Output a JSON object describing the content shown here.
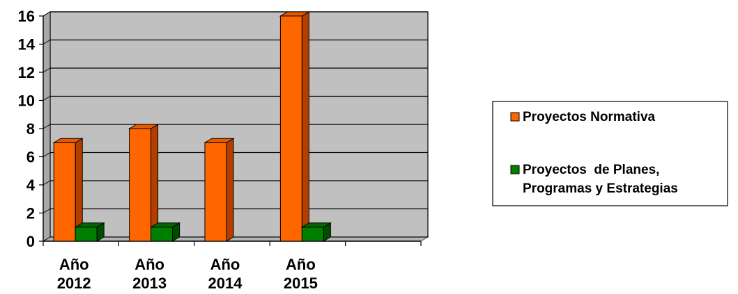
{
  "chart_data": {
    "type": "bar",
    "three_d": true,
    "categories": [
      [
        "Año",
        "2012"
      ],
      [
        "Año",
        "2013"
      ],
      [
        "Año",
        "2014"
      ],
      [
        "Año",
        "2015"
      ],
      [
        "",
        ""
      ]
    ],
    "series": [
      {
        "name": [
          "Proyectos Normativa"
        ],
        "values": [
          7,
          8,
          7,
          16,
          null
        ],
        "color": "#ff6600",
        "side_color": "#b33e00",
        "top_color": "#e85a00"
      },
      {
        "name": [
          "Proyectos  de Planes,",
          "Programas y Estrategias"
        ],
        "values": [
          1,
          1,
          0,
          1,
          null
        ],
        "color": "#007f00",
        "side_color": "#004d00",
        "top_color": "#006a00"
      }
    ],
    "ylim": [
      0,
      16
    ],
    "yticks": [
      "0",
      "2",
      "4",
      "6",
      "8",
      "10",
      "12",
      "14",
      "16"
    ],
    "grid": true,
    "plot_background": "#c0c0c0",
    "legend": "right"
  }
}
